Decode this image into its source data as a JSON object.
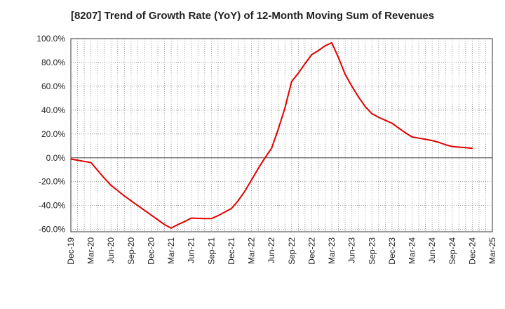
{
  "chart_data": {
    "type": "line",
    "title": "[8207]  Trend of Growth Rate (YoY) of 12-Month Moving Sum of Revenues",
    "xlabel": "",
    "ylabel": "",
    "x_ticks": [
      "Dec-19",
      "Mar-20",
      "Jun-20",
      "Sep-20",
      "Dec-20",
      "Mar-21",
      "Jun-21",
      "Sep-21",
      "Dec-21",
      "Mar-22",
      "Jun-22",
      "Sep-22",
      "Dec-22",
      "Mar-23",
      "Jun-23",
      "Sep-23",
      "Dec-23",
      "Mar-24",
      "Jun-24",
      "Sep-24",
      "Dec-24",
      "Mar-25"
    ],
    "y_ticks": [
      "100.0%",
      "80.0%",
      "60.0%",
      "40.0%",
      "20.0%",
      "0.0%",
      "-20.0%",
      "-40.0%",
      "-60.0%"
    ],
    "ylim": [
      -62,
      100
    ],
    "grid": true,
    "series": [
      {
        "color": "#e00000",
        "x": [
          "Dec-19",
          "Jan-20",
          "Feb-20",
          "Mar-20",
          "Apr-20",
          "May-20",
          "Jun-20",
          "Jul-20",
          "Aug-20",
          "Sep-20",
          "Oct-20",
          "Nov-20",
          "Dec-20",
          "Jan-21",
          "Feb-21",
          "Mar-21",
          "Apr-21",
          "May-21",
          "Jun-21",
          "Jul-21",
          "Aug-21",
          "Sep-21",
          "Oct-21",
          "Nov-21",
          "Dec-21",
          "Jan-22",
          "Feb-22",
          "Mar-22",
          "Apr-22",
          "May-22",
          "Jun-22",
          "Jul-22",
          "Aug-22",
          "Sep-22",
          "Oct-22",
          "Nov-22",
          "Dec-22",
          "Jan-23",
          "Feb-23",
          "Mar-23",
          "Apr-23",
          "May-23",
          "Jun-23",
          "Jul-23",
          "Aug-23",
          "Sep-23",
          "Oct-23",
          "Nov-23",
          "Dec-23",
          "Jan-24",
          "Feb-24",
          "Mar-24",
          "Apr-24",
          "May-24",
          "Jun-24",
          "Jul-24",
          "Aug-24",
          "Sep-24",
          "Oct-24",
          "Nov-24",
          "Dec-24"
        ],
        "values": [
          -1.0,
          -2.0,
          -3.0,
          -4.0,
          -10.5,
          -17.0,
          -23.0,
          -27.5,
          -32.0,
          -36.0,
          -40.0,
          -44.0,
          -48.0,
          -52.0,
          -56.0,
          -59.0,
          -56.0,
          -53.5,
          -50.5,
          -50.8,
          -51.0,
          -51.0,
          -48.5,
          -45.5,
          -42.5,
          -36.0,
          -28.0,
          -18.5,
          -9.0,
          0.0,
          8.0,
          24.0,
          42.0,
          64.0,
          71.0,
          79.0,
          86.5,
          90.0,
          94.0,
          96.5,
          84.0,
          70.0,
          60.0,
          51.0,
          43.0,
          37.0,
          34.0,
          31.5,
          29.0,
          25.0,
          21.0,
          17.5,
          16.5,
          15.5,
          14.5,
          13.0,
          11.0,
          9.5,
          9.0,
          8.5,
          8.0
        ]
      }
    ]
  }
}
